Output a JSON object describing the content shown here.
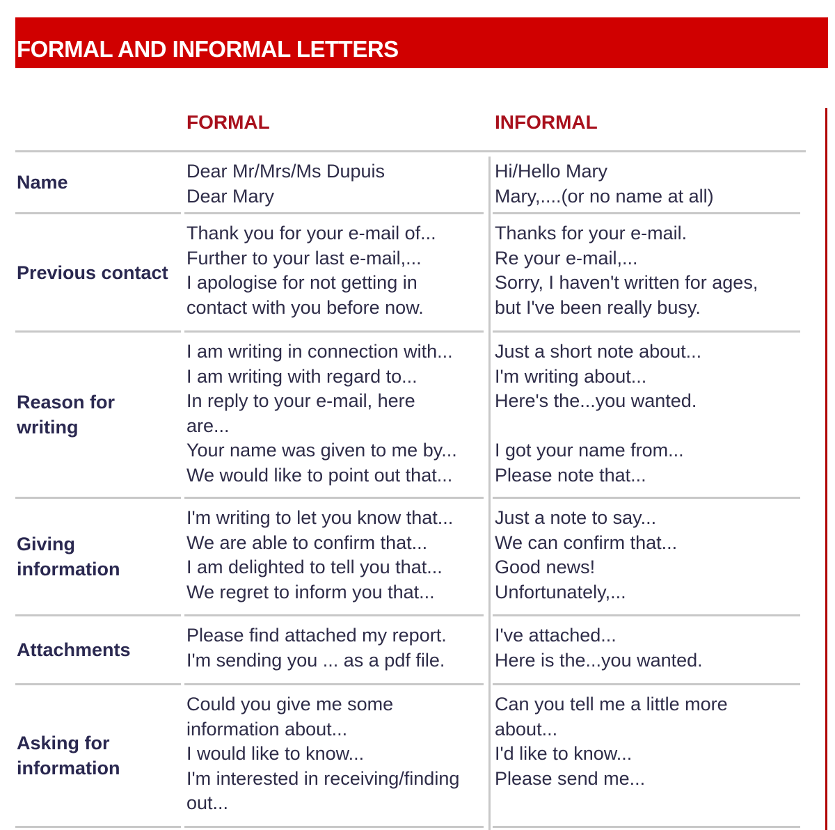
{
  "title": "FORMAL AND INFORMAL LETTERS",
  "headers": {
    "formal": "FORMAL",
    "informal": "INFORMAL"
  },
  "colors": {
    "banner": "#d00000",
    "header_text": "#a8101c",
    "body_text": "#2e2c48"
  },
  "rows": [
    {
      "label": "Name",
      "formal": [
        "Dear Mr/Mrs/Ms Dupuis",
        "Dear Mary"
      ],
      "informal": [
        "Hi/Hello Mary",
        "Mary,....(or no name at all)"
      ]
    },
    {
      "label": "Previous contact",
      "formal": [
        "Thank you for your e-mail of...",
        "Further to your last e-mail,...",
        "I apologise for not getting in",
        "contact with you before now."
      ],
      "informal": [
        "Thanks for your e-mail.",
        "Re your e-mail,...",
        "Sorry, I haven't written for ages,",
        "but I've been really busy."
      ]
    },
    {
      "label": "Reason for writing",
      "formal": [
        "I am writing in connection with...",
        "I am writing with regard to...",
        "In reply to your e-mail, here",
        "are...",
        "Your name was given to me by...",
        "We would like to point out that..."
      ],
      "informal": [
        "Just a short note about...",
        "I'm writing about...",
        "Here's the...you wanted.",
        "",
        "I got your name from...",
        "Please note that..."
      ]
    },
    {
      "label": "Giving information",
      "formal": [
        "I'm writing to let you know that...",
        "We are able to confirm that...",
        "I am delighted to tell you that...",
        "We regret to inform you that..."
      ],
      "informal": [
        "Just a note to say...",
        "We can confirm that...",
        "Good news!",
        "Unfortunately,..."
      ]
    },
    {
      "label": "Attachments",
      "formal": [
        "Please find attached my report.",
        "I'm sending you ... as a pdf file."
      ],
      "informal": [
        "I've attached...",
        "Here is the...you wanted."
      ]
    },
    {
      "label": "Asking for information",
      "formal": [
        "Could you give me some",
        "information about...",
        "I would like to know...",
        "I'm interested in receiving/finding",
        "out..."
      ],
      "informal": [
        "Can you tell me a little more",
        "about...",
        "I'd like to know...",
        "Please send me..."
      ]
    }
  ]
}
